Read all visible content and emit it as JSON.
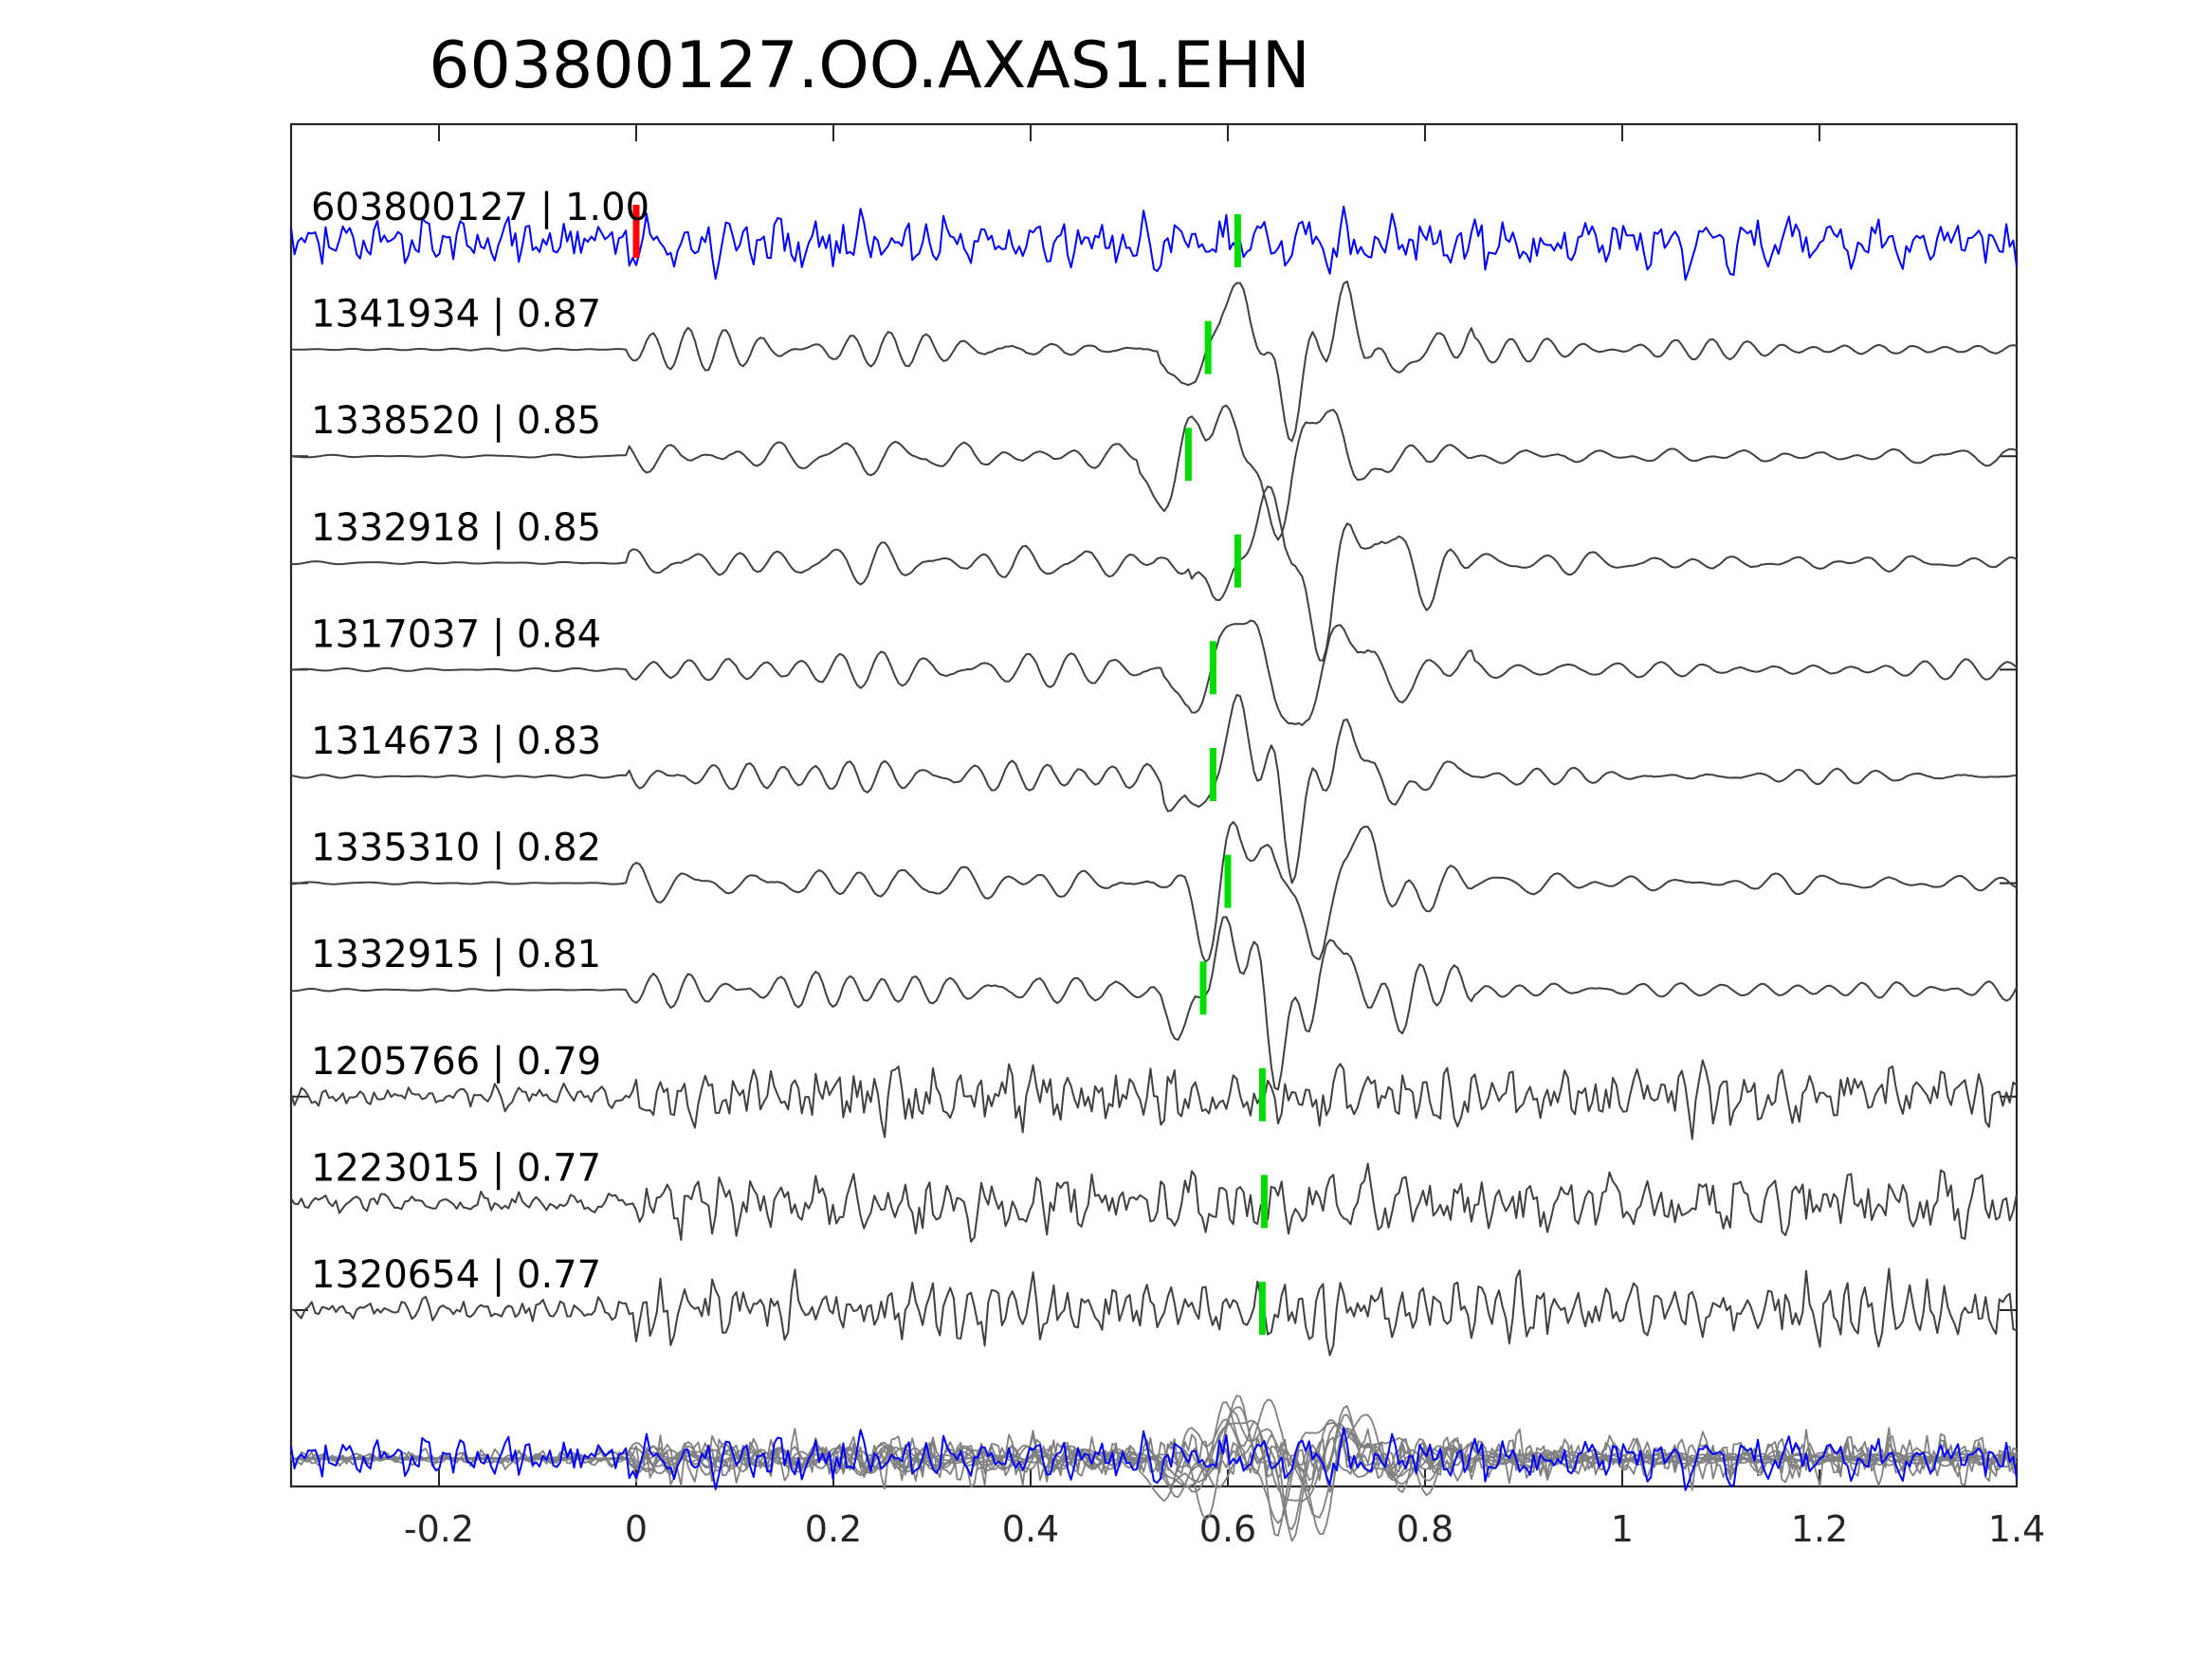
{
  "chart_data": {
    "type": "line",
    "title": "603800127.OO.AXAS1.EHN",
    "xlim": [
      -0.35,
      1.4
    ],
    "xticks": [
      {
        "value": -0.2,
        "label": "-0.2"
      },
      {
        "value": 0,
        "label": "0"
      },
      {
        "value": 0.2,
        "label": "0.2"
      },
      {
        "value": 0.4,
        "label": "0.4"
      },
      {
        "value": 0.6,
        "label": "0.6"
      },
      {
        "value": 0.8,
        "label": "0.8"
      },
      {
        "value": 1.0,
        "label": "1"
      },
      {
        "value": 1.2,
        "label": "1.2"
      },
      {
        "value": 1.4,
        "label": "1.4"
      }
    ],
    "grid": false,
    "colors": {
      "master": "#0000ff",
      "trace": "#404040",
      "stack": "#808080",
      "master_pick": "#ff0000",
      "pick": "#00dd00",
      "axis": "#262626"
    },
    "series": [
      {
        "id": "603800127",
        "label": "603800127 | 1.00",
        "correlation": 1.0,
        "pick_time": 0.0,
        "s_pick_time": 0.61,
        "style": "master"
      },
      {
        "id": "1341934",
        "label": "1341934 | 0.87",
        "correlation": 0.87,
        "s_pick_time": 0.58,
        "style": "smooth"
      },
      {
        "id": "1338520",
        "label": "1338520 | 0.85",
        "correlation": 0.85,
        "s_pick_time": 0.56,
        "style": "smooth"
      },
      {
        "id": "1332918",
        "label": "1332918 | 0.85",
        "correlation": 0.85,
        "s_pick_time": 0.61,
        "style": "smooth"
      },
      {
        "id": "1317037",
        "label": "1317037 | 0.84",
        "correlation": 0.84,
        "s_pick_time": 0.585,
        "style": "smooth"
      },
      {
        "id": "1314673",
        "label": "1314673 | 0.83",
        "correlation": 0.83,
        "s_pick_time": 0.585,
        "style": "smooth"
      },
      {
        "id": "1335310",
        "label": "1335310 | 0.82",
        "correlation": 0.82,
        "s_pick_time": 0.6,
        "style": "smooth"
      },
      {
        "id": "1332915",
        "label": "1332915 | 0.81",
        "correlation": 0.81,
        "s_pick_time": 0.575,
        "style": "smooth"
      },
      {
        "id": "1205766",
        "label": "1205766 | 0.79",
        "correlation": 0.79,
        "s_pick_time": 0.635,
        "style": "noisy"
      },
      {
        "id": "1223015",
        "label": "1223015 | 0.77",
        "correlation": 0.77,
        "s_pick_time": 0.637,
        "style": "noisy"
      },
      {
        "id": "1320654",
        "label": "1320654 | 0.77",
        "correlation": 0.77,
        "s_pick_time": 0.635,
        "style": "noisy"
      }
    ]
  }
}
